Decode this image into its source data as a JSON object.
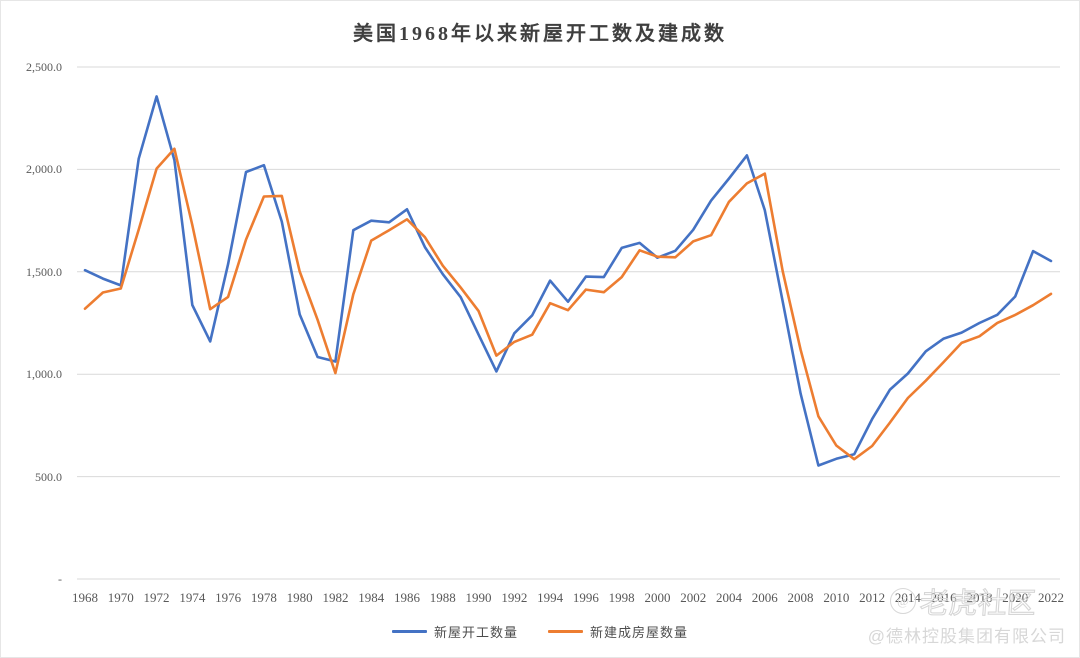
{
  "title": "美国1968年以来新屋开工数及建成数",
  "watermarks": {
    "community": "老虎社区",
    "community_logo": "@",
    "company": "@德林控股集团有限公司"
  },
  "chart_data": {
    "type": "line",
    "title": "美国1968年以来新屋开工数及建成数",
    "xlabel": "",
    "ylabel": "",
    "ylim": [
      0,
      2500
    ],
    "grid": "horizontal",
    "grid_color": "#d9d9d9",
    "axis_text_color": "#595959",
    "legend_position": "bottom",
    "x_tick_step": 2,
    "x": [
      1968,
      1969,
      1970,
      1971,
      1972,
      1973,
      1974,
      1975,
      1976,
      1977,
      1978,
      1979,
      1980,
      1981,
      1982,
      1983,
      1984,
      1985,
      1986,
      1987,
      1988,
      1989,
      1990,
      1991,
      1992,
      1993,
      1994,
      1995,
      1996,
      1997,
      1998,
      1999,
      2000,
      2001,
      2002,
      2003,
      2004,
      2005,
      2006,
      2007,
      2008,
      2009,
      2010,
      2011,
      2012,
      2013,
      2014,
      2015,
      2016,
      2017,
      2018,
      2019,
      2020,
      2021,
      2022
    ],
    "y_ticks": [
      {
        "value": 2500,
        "label": "2,500.0"
      },
      {
        "value": 2000,
        "label": "2,000.0"
      },
      {
        "value": 1500,
        "label": "1,500.0"
      },
      {
        "value": 1000,
        "label": "1,000.0"
      },
      {
        "value": 500,
        "label": "500.0"
      },
      {
        "value": 0,
        "label": "-"
      }
    ],
    "series": [
      {
        "name": "新屋开工数量",
        "color": "#4472C4",
        "values": [
          1507.6,
          1466.8,
          1433.6,
          2052.2,
          2356.6,
          2045.3,
          1337.7,
          1160.4,
          1537.5,
          1987.1,
          2020.3,
          1745.1,
          1292.2,
          1084.2,
          1062.2,
          1703.0,
          1749.5,
          1741.8,
          1805.4,
          1620.5,
          1488.1,
          1376.1,
          1192.7,
          1013.9,
          1199.7,
          1287.6,
          1457.0,
          1354.1,
          1476.8,
          1474.0,
          1616.9,
          1640.9,
          1568.7,
          1602.7,
          1704.9,
          1847.7,
          1955.8,
          2068.3,
          1800.9,
          1355.0,
          905.5,
          554.0,
          586.9,
          608.8,
          780.6,
          924.9,
          1003.3,
          1111.8,
          1173.8,
          1203.0,
          1249.9,
          1290.0,
          1379.6,
          1601.0,
          1552.6
        ]
      },
      {
        "name": "新建成房屋数量",
        "color": "#ED7D31",
        "values": [
          1319.8,
          1399.0,
          1418.4,
          1706.1,
          2003.9,
          2100.5,
          1728.5,
          1317.2,
          1377.2,
          1657.1,
          1867.5,
          1870.8,
          1501.6,
          1265.7,
          1005.5,
          1390.3,
          1652.2,
          1703.3,
          1756.4,
          1668.8,
          1529.8,
          1422.8,
          1308.0,
          1090.8,
          1157.5,
          1192.7,
          1346.9,
          1312.6,
          1412.9,
          1400.5,
          1474.2,
          1604.9,
          1573.7,
          1570.8,
          1648.4,
          1678.7,
          1841.9,
          1931.4,
          1979.4,
          1502.8,
          1119.7,
          794.4,
          651.7,
          584.9,
          649.2,
          764.4,
          883.8,
          968.2,
          1059.7,
          1152.9,
          1184.9,
          1250.6,
          1289.4,
          1337.0,
          1392.3
        ]
      }
    ]
  }
}
